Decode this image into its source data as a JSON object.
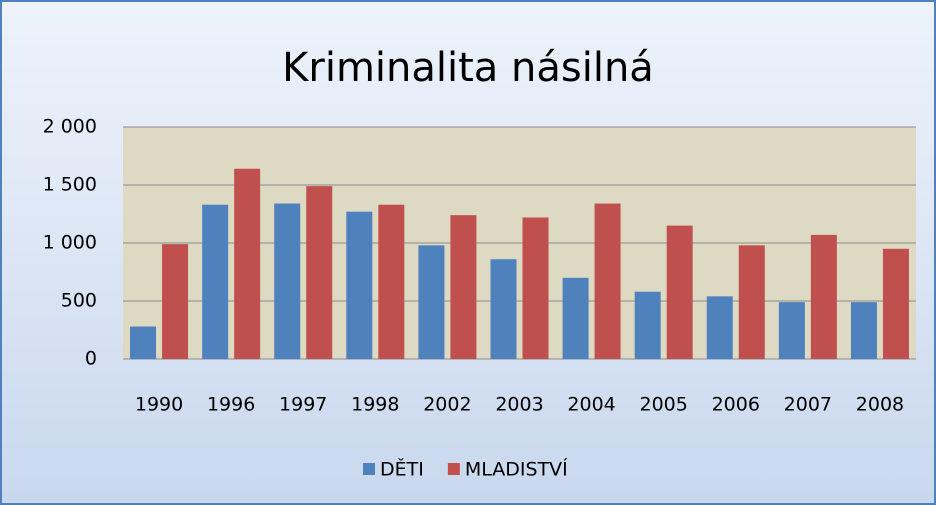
{
  "chart_data": {
    "type": "bar",
    "title": "Kriminalita násilná",
    "categories": [
      "1990",
      "1996",
      "1997",
      "1998",
      "2002",
      "2003",
      "2004",
      "2005",
      "2006",
      "2007",
      "2008"
    ],
    "series": [
      {
        "name": "DĚTI",
        "color": "#4f81bd",
        "values": [
          280,
          1330,
          1340,
          1270,
          980,
          860,
          700,
          580,
          540,
          490,
          490
        ]
      },
      {
        "name": "MLADISTVÍ",
        "color": "#c0504d",
        "values": [
          990,
          1640,
          1490,
          1330,
          1240,
          1220,
          1340,
          1150,
          980,
          1070,
          950
        ]
      }
    ],
    "ylim": [
      0,
      2000
    ],
    "yticks": [
      0,
      500,
      {
        "value": 1000,
        "label": "1 000"
      },
      {
        "value": 1500,
        "label": "1 500"
      },
      {
        "value": 2000,
        "label": "2 000"
      }
    ],
    "grid": true,
    "legend": "bottom"
  }
}
